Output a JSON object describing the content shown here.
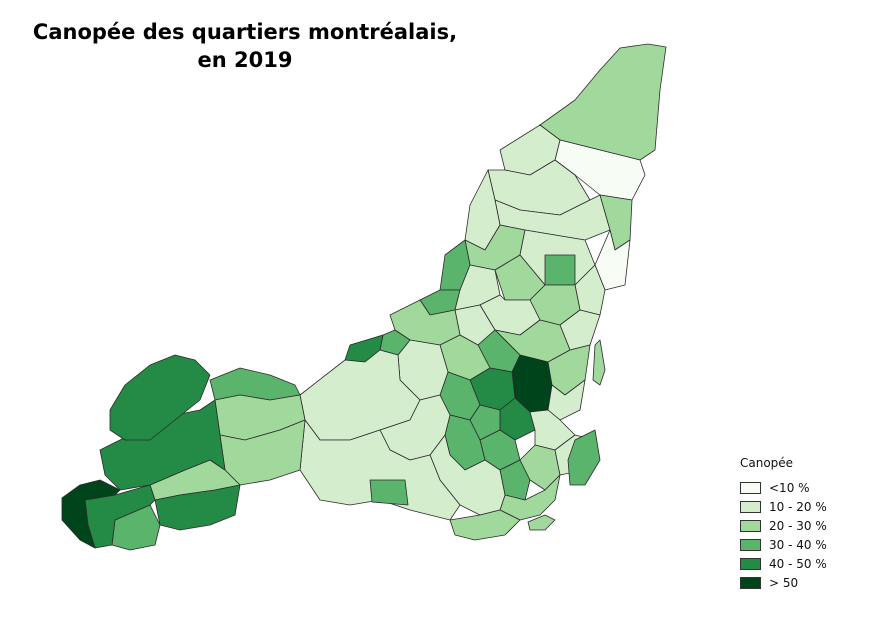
{
  "title": "Canopée des quartiers montréalais, en 2019",
  "legend": {
    "title": "Canopée",
    "items": [
      {
        "label": "<10 %",
        "color": "#f7fcf5"
      },
      {
        "label": "10 - 20 %",
        "color": "#d4eecd"
      },
      {
        "label": "20 - 30 %",
        "color": "#a0d99b"
      },
      {
        "label": "30 - 40 %",
        "color": "#5ab46c"
      },
      {
        "label": "40 - 50 %",
        "color": "#238b45"
      },
      {
        "label": "> 50",
        "color": "#00441b"
      }
    ]
  }
}
